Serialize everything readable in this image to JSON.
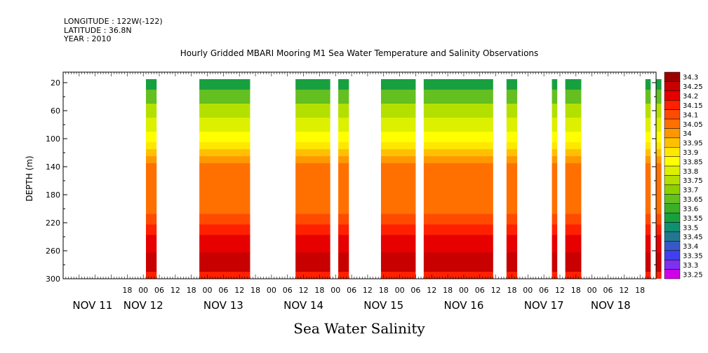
{
  "header": {
    "longitude": "LONGITUDE : 122W(-122)",
    "latitude": "LATITUDE : 36.8N",
    "year": "YEAR : 2010"
  },
  "chart_data": {
    "type": "heatmap",
    "title": "Hourly Gridded MBARI Mooring M1 Sea Water Temperature and Salinity Observations",
    "xlabel": "Sea Water Salinity",
    "ylabel": "DEPTH (m)",
    "x_unit": "hours since NOV 11 00:00 (2010)",
    "xlim": [
      -30,
      192
    ],
    "ylim": [
      300,
      5
    ],
    "y_ticks": [
      20,
      60,
      100,
      140,
      180,
      220,
      260,
      300
    ],
    "x_hour_ticks": [
      {
        "x": -6,
        "label": "18"
      },
      {
        "x": 0,
        "label": "00"
      },
      {
        "x": 6,
        "label": "06"
      },
      {
        "x": 12,
        "label": "12"
      },
      {
        "x": 18,
        "label": "18"
      },
      {
        "x": 24,
        "label": "00"
      },
      {
        "x": 30,
        "label": "06"
      },
      {
        "x": 36,
        "label": "12"
      },
      {
        "x": 42,
        "label": "18"
      },
      {
        "x": 48,
        "label": "00"
      },
      {
        "x": 54,
        "label": "06"
      },
      {
        "x": 60,
        "label": "12"
      },
      {
        "x": 66,
        "label": "18"
      },
      {
        "x": 72,
        "label": "00"
      },
      {
        "x": 78,
        "label": "06"
      },
      {
        "x": 84,
        "label": "12"
      },
      {
        "x": 90,
        "label": "18"
      },
      {
        "x": 96,
        "label": "00"
      },
      {
        "x": 102,
        "label": "06"
      },
      {
        "x": 108,
        "label": "12"
      },
      {
        "x": 114,
        "label": "18"
      },
      {
        "x": 120,
        "label": "00"
      },
      {
        "x": 126,
        "label": "06"
      },
      {
        "x": 132,
        "label": "12"
      },
      {
        "x": 138,
        "label": "18"
      },
      {
        "x": 144,
        "label": "00"
      },
      {
        "x": 150,
        "label": "06"
      },
      {
        "x": 156,
        "label": "12"
      },
      {
        "x": 162,
        "label": "18"
      },
      {
        "x": 168,
        "label": "00"
      },
      {
        "x": 174,
        "label": "06"
      },
      {
        "x": 180,
        "label": "12"
      },
      {
        "x": 186,
        "label": "18"
      }
    ],
    "x_day_labels": [
      {
        "x": -19,
        "label": "NOV 11"
      },
      {
        "x": 0,
        "label": "NOV 12"
      },
      {
        "x": 30,
        "label": "NOV 13"
      },
      {
        "x": 60,
        "label": "NOV 14"
      },
      {
        "x": 90,
        "label": "NOV 15"
      },
      {
        "x": 120,
        "label": "NOV 16"
      },
      {
        "x": 150,
        "label": "NOV 17"
      },
      {
        "x": 175,
        "label": "NOV 18"
      }
    ],
    "colorbar": {
      "levels": [
        "34.3",
        "34.25",
        "34.2",
        "34.15",
        "34.1",
        "34.05",
        "34",
        "33.95",
        "33.9",
        "33.85",
        "33.8",
        "33.75",
        "33.7",
        "33.65",
        "33.6",
        "33.55",
        "33.5",
        "33.45",
        "33.4",
        "33.35",
        "33.3",
        "33.25"
      ],
      "colors": [
        "#9a0000",
        "#c80000",
        "#e60000",
        "#ff2000",
        "#ff4a00",
        "#ff7000",
        "#ff9800",
        "#ffc000",
        "#ffe800",
        "#ffff00",
        "#dcf000",
        "#b4e000",
        "#8cd000",
        "#64bf20",
        "#3cae28",
        "#18a040",
        "#109070",
        "#207890",
        "#3858c8",
        "#4040f0",
        "#8030f0",
        "#d000e8"
      ]
    },
    "segments": [
      {
        "start": 1,
        "end": 5
      },
      {
        "start": 21,
        "end": 40
      },
      {
        "start": 57,
        "end": 70
      },
      {
        "start": 73,
        "end": 77
      },
      {
        "start": 89,
        "end": 102
      },
      {
        "start": 105,
        "end": 131
      },
      {
        "start": 136,
        "end": 140
      },
      {
        "start": 153,
        "end": 155
      },
      {
        "start": 158,
        "end": 164
      },
      {
        "start": 188,
        "end": 190
      },
      {
        "start": 192,
        "end": 194
      }
    ],
    "profile": [
      {
        "depth": 20,
        "value": 33.55
      },
      {
        "depth": 40,
        "value": 33.65
      },
      {
        "depth": 60,
        "value": 33.75
      },
      {
        "depth": 80,
        "value": 33.8
      },
      {
        "depth": 100,
        "value": 33.85
      },
      {
        "depth": 110,
        "value": 33.9
      },
      {
        "depth": 120,
        "value": 33.95
      },
      {
        "depth": 130,
        "value": 34.0
      },
      {
        "depth": 140,
        "value": 34.05
      },
      {
        "depth": 200,
        "value": 34.05
      },
      {
        "depth": 215,
        "value": 34.1
      },
      {
        "depth": 230,
        "value": 34.15
      },
      {
        "depth": 245,
        "value": 34.2
      },
      {
        "depth": 280,
        "value": 34.25
      },
      {
        "depth": 300,
        "value": 34.15
      }
    ]
  }
}
